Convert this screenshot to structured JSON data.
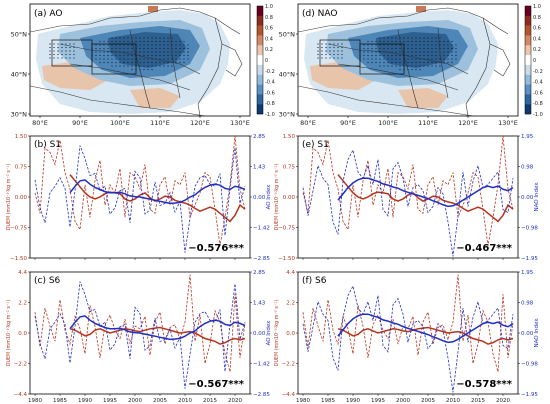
{
  "colors": {
    "ocean": "#ffffff",
    "map_blue_dark": "#2d5f8f",
    "map_blue_mid": "#4f86b8",
    "map_blue_light": "#9dc1dc",
    "map_blue_pale": "#d4e4f0",
    "map_red_light": "#e8c4aa",
    "map_red_mid": "#c97a54",
    "border": "#333333",
    "series_red": "#b5341d",
    "series_blue": "#1f2fc2"
  },
  "maps": [
    {
      "panel_label": "(a) AO",
      "lat_ticks": [
        "50°N",
        "40°N",
        "30°N"
      ],
      "lon_ticks": [
        "80°E",
        "90°E",
        "100°E",
        "110°E",
        "120°E",
        "130°E"
      ]
    },
    {
      "panel_label": "(d) NAO",
      "lat_ticks": [
        "50°N",
        "40°N",
        "30°N"
      ],
      "lon_ticks": [
        "80°E",
        "90°E",
        "100°E",
        "110°E",
        "120°E",
        "130°E"
      ]
    }
  ],
  "colorbar": {
    "ticks": [
      "1.0",
      "0.8",
      "0.6",
      "0.4",
      "0.2",
      "0",
      "-0.2",
      "-0.4",
      "-0.6",
      "-0.8",
      "-1.0"
    ],
    "colors": [
      "#67001f",
      "#8c2d1f",
      "#b5552e",
      "#d48865",
      "#ecc5ae",
      "#ffffff",
      "#c9dcec",
      "#92bbd9",
      "#5a93c3",
      "#2e66a0",
      "#0d3a70"
    ]
  },
  "chart_data": [
    {
      "type": "line",
      "panel_label": "(b) S1",
      "correlation": "−0.576***",
      "ylabel_left": "DUEM (mm10⁻¹⁰kg m⁻² s⁻¹)",
      "ylabel_right": "AO Index",
      "ylim_left": [
        -1.5,
        1.5
      ],
      "yticks_left": [
        "1.50",
        "0.75",
        "0.00",
        "−0.75",
        "−1.50"
      ],
      "ylim_right": [
        -2.85,
        2.85
      ],
      "yticks_right": [
        "2.85",
        "1.43",
        "0.00",
        "−1.42",
        "−2.85"
      ],
      "xlim": [
        1979,
        2023
      ],
      "xticks": [],
      "x_start": 1980,
      "series": [
        {
          "role": "annual",
          "color": "red",
          "dashed": true,
          "values": [
            0.1,
            -0.4,
            1.2,
            1.1,
            0.8,
            1.4,
            0.6,
            0.2,
            -0.6,
            -0.8,
            0.3,
            -0.5,
            0.4,
            0.9,
            -0.2,
            0.3,
            0.1,
            0.7,
            -0.5,
            0.6,
            0.5,
            0.2,
            0.8,
            -0.3,
            -0.4,
            0.3,
            0.5,
            -0.2,
            0.4,
            0.3,
            0.6,
            -0.5,
            -0.2,
            0.1,
            0.6,
            0.5,
            -0.3,
            -1.2,
            -0.5,
            0.3,
            1.5,
            0.2,
            -0.3
          ]
        },
        {
          "role": "smoothed",
          "color": "red",
          "dashed": false,
          "values": [
            null,
            null,
            null,
            null,
            null,
            null,
            null,
            0.55,
            0.4,
            0.25,
            0.1,
            0.0,
            -0.05,
            0.0,
            0.08,
            0.12,
            0.1,
            0.08,
            -0.05,
            -0.1,
            -0.05,
            0.05,
            0.1,
            -0.02,
            -0.1,
            -0.05,
            0.02,
            0.0,
            -0.08,
            -0.12,
            -0.15,
            -0.2,
            -0.28,
            -0.35,
            -0.3,
            -0.25,
            -0.3,
            -0.4,
            -0.5,
            -0.6,
            -0.45,
            -0.2,
            -0.3
          ]
        },
        {
          "role": "annual",
          "color": "blue",
          "dashed": true,
          "values": [
            0.8,
            -0.5,
            -1.2,
            0.2,
            0.5,
            0.9,
            0.4,
            -1.4,
            0.3,
            2.4,
            1.8,
            1.0,
            1.1,
            0.3,
            0.5,
            -0.8,
            -0.5,
            0.3,
            0.4,
            -1.2,
            1.2,
            0.9,
            -0.8,
            -0.6,
            0.7,
            -0.4,
            -0.3,
            0.2,
            -0.7,
            -0.2,
            -2.6,
            -1.0,
            0.5,
            0.9,
            1.0,
            0.6,
            0.5,
            1.1,
            -1.8,
            0.4,
            2.3,
            -0.3,
            0.5
          ]
        },
        {
          "role": "smoothed",
          "color": "blue",
          "dashed": false,
          "values": [
            null,
            null,
            null,
            null,
            null,
            null,
            null,
            0.2,
            0.5,
            0.75,
            0.8,
            0.6,
            0.45,
            0.35,
            0.25,
            0.2,
            0.2,
            0.22,
            0.15,
            0.05,
            0.02,
            0.0,
            -0.05,
            -0.1,
            -0.15,
            -0.2,
            -0.25,
            -0.3,
            -0.28,
            -0.25,
            -0.15,
            0.0,
            0.1,
            0.3,
            0.45,
            0.55,
            0.6,
            0.55,
            0.4,
            0.35,
            0.5,
            0.45,
            0.35
          ]
        }
      ]
    },
    {
      "type": "line",
      "panel_label": "(e) S1",
      "correlation": "−0.467***",
      "ylabel_left": "DUEM (mm10⁻¹⁰kg m⁻² s⁻¹)",
      "ylabel_right": "NAO Index",
      "ylim_left": [
        -1.5,
        1.5
      ],
      "yticks_left": [
        "1.50",
        "0.75",
        "0.00",
        "−0.75",
        "−1.50"
      ],
      "ylim_right": [
        -1.95,
        1.95
      ],
      "yticks_right": [
        "1.95",
        "0.98",
        "0.00",
        "−0.98",
        "−1.95"
      ],
      "xlim": [
        1979,
        2023
      ],
      "xticks": [],
      "x_start": 1980,
      "series": [
        {
          "role": "annual",
          "color": "red",
          "dashed": true,
          "values": [
            0.1,
            -0.4,
            1.2,
            1.1,
            0.8,
            1.4,
            0.6,
            0.2,
            -0.6,
            -0.8,
            0.3,
            -0.5,
            0.4,
            0.9,
            -0.2,
            0.3,
            0.1,
            0.7,
            -0.5,
            0.6,
            0.5,
            0.2,
            0.8,
            -0.3,
            -0.4,
            0.3,
            0.5,
            -0.2,
            0.4,
            0.3,
            0.6,
            -0.5,
            -0.2,
            0.1,
            0.6,
            0.5,
            -0.3,
            -1.2,
            -0.5,
            0.3,
            1.5,
            0.2,
            -0.3
          ]
        },
        {
          "role": "smoothed",
          "color": "red",
          "dashed": false,
          "values": [
            null,
            null,
            null,
            null,
            null,
            null,
            null,
            0.55,
            0.4,
            0.25,
            0.1,
            0.0,
            -0.05,
            0.0,
            0.08,
            0.12,
            0.1,
            0.08,
            -0.05,
            -0.1,
            -0.05,
            0.05,
            0.1,
            -0.02,
            -0.1,
            -0.05,
            0.02,
            0.0,
            -0.08,
            -0.12,
            -0.15,
            -0.2,
            -0.28,
            -0.35,
            -0.3,
            -0.25,
            -0.3,
            -0.4,
            -0.5,
            -0.6,
            -0.45,
            -0.2,
            -0.3
          ]
        },
        {
          "role": "annual",
          "color": "blue",
          "dashed": true,
          "values": [
            0.3,
            -0.6,
            0.2,
            1.0,
            0.6,
            0.4,
            -0.8,
            -1.2,
            0.5,
            1.2,
            1.5,
            0.8,
            0.6,
            1.0,
            0.4,
            1.2,
            -0.4,
            -0.6,
            0.9,
            1.1,
            0.6,
            -0.3,
            0.3,
            0.4,
            0.2,
            -0.5,
            -0.3,
            0.3,
            0.1,
            -0.8,
            -1.9,
            -0.6,
            0.8,
            -0.3,
            0.5,
            1.0,
            0.3,
            0.4,
            0.6,
            0.8,
            -0.4,
            -0.5,
            0.6
          ]
        },
        {
          "role": "smoothed",
          "color": "blue",
          "dashed": false,
          "values": [
            null,
            null,
            null,
            null,
            null,
            null,
            null,
            -0.1,
            0.1,
            0.3,
            0.45,
            0.55,
            0.6,
            0.6,
            0.55,
            0.5,
            0.42,
            0.38,
            0.32,
            0.28,
            0.2,
            0.15,
            0.1,
            0.05,
            0.0,
            -0.05,
            -0.12,
            -0.18,
            -0.25,
            -0.3,
            -0.28,
            -0.2,
            -0.1,
            0.0,
            0.1,
            0.2,
            0.3,
            0.35,
            0.3,
            0.35,
            0.25,
            0.2,
            0.3
          ]
        }
      ]
    },
    {
      "type": "line",
      "panel_label": "(c) S6",
      "correlation": "−0.567***",
      "ylabel_left": "DUEM (mm10⁻¹⁰kg m⁻² s⁻¹)",
      "ylabel_right": "AO Index",
      "ylim_left": [
        -4.4,
        4.4
      ],
      "yticks_left": [
        "4.4",
        "2.2",
        "0.0",
        "−2.2",
        "−4.4"
      ],
      "ylim_right": [
        -2.85,
        2.85
      ],
      "yticks_right": [
        "2.85",
        "1.43",
        "0.00",
        "−1.42",
        "−2.85"
      ],
      "xlim": [
        1979,
        2023
      ],
      "xticks": [
        "1980",
        "1985",
        "1990",
        "1995",
        "2000",
        "2005",
        "2010",
        "2015",
        "2020"
      ],
      "x_start": 1980,
      "series": [
        {
          "role": "annual",
          "color": "red",
          "dashed": true,
          "values": [
            1.5,
            -1.0,
            1.8,
            0.5,
            -0.6,
            2.4,
            0.2,
            -0.8,
            1.2,
            0.3,
            -1.5,
            2.0,
            0.5,
            -1.8,
            0.6,
            1.3,
            0.2,
            -0.4,
            1.0,
            -0.8,
            0.5,
            0.3,
            1.2,
            -1.6,
            0.8,
            1.5,
            -0.8,
            0.4,
            0.6,
            -0.5,
            0.8,
            4.2,
            -0.6,
            1.3,
            -2.2,
            -0.8,
            1.6,
            0.8,
            -1.5,
            -2.8,
            2.8,
            -1.8,
            0.7
          ]
        },
        {
          "role": "smoothed",
          "color": "red",
          "dashed": false,
          "values": [
            null,
            null,
            null,
            null,
            null,
            null,
            null,
            0.3,
            0.2,
            0.0,
            -0.2,
            -0.1,
            0.2,
            0.3,
            0.15,
            0.0,
            0.1,
            0.2,
            0.3,
            0.25,
            0.15,
            0.1,
            0.2,
            0.3,
            0.35,
            0.4,
            0.3,
            0.2,
            0.1,
            0.0,
            0.05,
            0.1,
            0.0,
            -0.2,
            -0.4,
            -0.5,
            -0.6,
            -0.8,
            -0.7,
            -0.5,
            -0.4,
            -0.5,
            -0.4
          ]
        },
        {
          "role": "annual",
          "color": "blue",
          "dashed": true,
          "values": [
            0.8,
            -0.5,
            -1.2,
            0.2,
            0.5,
            0.9,
            0.4,
            -1.4,
            0.3,
            2.4,
            1.8,
            1.0,
            1.1,
            0.3,
            0.5,
            -0.8,
            -0.5,
            0.3,
            0.4,
            -1.2,
            1.2,
            0.9,
            -0.8,
            -0.6,
            0.7,
            -0.4,
            -0.3,
            0.2,
            -0.7,
            -0.2,
            -2.6,
            -1.0,
            0.5,
            0.9,
            1.0,
            0.6,
            0.5,
            1.1,
            -1.8,
            0.4,
            2.3,
            -0.3,
            0.5
          ]
        },
        {
          "role": "smoothed",
          "color": "blue",
          "dashed": false,
          "values": [
            null,
            null,
            null,
            null,
            null,
            null,
            null,
            0.2,
            0.5,
            0.75,
            0.8,
            0.6,
            0.45,
            0.35,
            0.25,
            0.2,
            0.2,
            0.22,
            0.15,
            0.05,
            0.02,
            0.0,
            -0.05,
            -0.1,
            -0.15,
            -0.2,
            -0.25,
            -0.3,
            -0.28,
            -0.25,
            -0.15,
            0.0,
            0.1,
            0.3,
            0.45,
            0.55,
            0.6,
            0.55,
            0.4,
            0.35,
            0.5,
            0.45,
            0.35
          ]
        }
      ]
    },
    {
      "type": "line",
      "panel_label": "(f) S6",
      "correlation": "−0.578***",
      "ylabel_left": "DUEM (mm10⁻¹⁰kg m⁻² s⁻¹)",
      "ylabel_right": "NAO Index",
      "ylim_left": [
        -4.4,
        4.4
      ],
      "yticks_left": [
        "4.4",
        "2.2",
        "0.0",
        "−2.2",
        "−4.4"
      ],
      "ylim_right": [
        -1.95,
        1.95
      ],
      "yticks_right": [
        "1.95",
        "0.98",
        "0.00",
        "−0.98",
        "−1.95"
      ],
      "xlim": [
        1979,
        2023
      ],
      "xticks": [
        "1980",
        "1985",
        "1990",
        "1995",
        "2000",
        "2005",
        "2010",
        "2015",
        "2020"
      ],
      "x_start": 1980,
      "series": [
        {
          "role": "annual",
          "color": "red",
          "dashed": true,
          "values": [
            1.5,
            -1.0,
            1.8,
            0.5,
            -0.6,
            2.4,
            0.2,
            -0.8,
            1.2,
            0.3,
            -1.5,
            2.0,
            0.5,
            -1.8,
            0.6,
            1.3,
            0.2,
            -0.4,
            1.0,
            -0.8,
            0.5,
            0.3,
            1.2,
            -1.6,
            0.8,
            1.5,
            -0.8,
            0.4,
            0.6,
            -0.5,
            0.8,
            4.2,
            -0.6,
            1.3,
            -2.2,
            -0.8,
            1.6,
            0.8,
            -1.5,
            -2.8,
            2.8,
            -1.8,
            0.7
          ]
        },
        {
          "role": "smoothed",
          "color": "red",
          "dashed": false,
          "values": [
            null,
            null,
            null,
            null,
            null,
            null,
            null,
            0.3,
            0.2,
            0.0,
            -0.2,
            -0.1,
            0.2,
            0.3,
            0.15,
            0.0,
            0.1,
            0.2,
            0.3,
            0.25,
            0.15,
            0.1,
            0.2,
            0.3,
            0.35,
            0.4,
            0.3,
            0.2,
            0.1,
            0.0,
            0.05,
            0.1,
            0.0,
            -0.2,
            -0.4,
            -0.5,
            -0.6,
            -0.8,
            -0.7,
            -0.5,
            -0.4,
            -0.5,
            -0.4
          ]
        },
        {
          "role": "annual",
          "color": "blue",
          "dashed": true,
          "values": [
            0.3,
            -0.6,
            0.2,
            1.0,
            0.6,
            0.4,
            -0.8,
            -1.2,
            0.5,
            1.2,
            1.5,
            0.8,
            0.6,
            1.0,
            0.4,
            1.2,
            -0.4,
            -0.6,
            0.9,
            1.1,
            0.6,
            -0.3,
            0.3,
            0.4,
            0.2,
            -0.5,
            -0.3,
            0.3,
            0.1,
            -0.8,
            -1.9,
            -0.6,
            0.8,
            -0.3,
            0.5,
            1.0,
            0.3,
            0.4,
            0.6,
            0.8,
            -0.4,
            -0.5,
            0.6
          ]
        },
        {
          "role": "smoothed",
          "color": "blue",
          "dashed": false,
          "values": [
            null,
            null,
            null,
            null,
            null,
            null,
            null,
            -0.1,
            0.1,
            0.3,
            0.45,
            0.55,
            0.6,
            0.6,
            0.55,
            0.5,
            0.42,
            0.38,
            0.32,
            0.28,
            0.2,
            0.15,
            0.1,
            0.05,
            0.0,
            -0.05,
            -0.12,
            -0.18,
            -0.25,
            -0.3,
            -0.28,
            -0.2,
            -0.1,
            0.0,
            0.1,
            0.2,
            0.3,
            0.35,
            0.3,
            0.35,
            0.25,
            0.2,
            0.3
          ]
        }
      ]
    }
  ]
}
